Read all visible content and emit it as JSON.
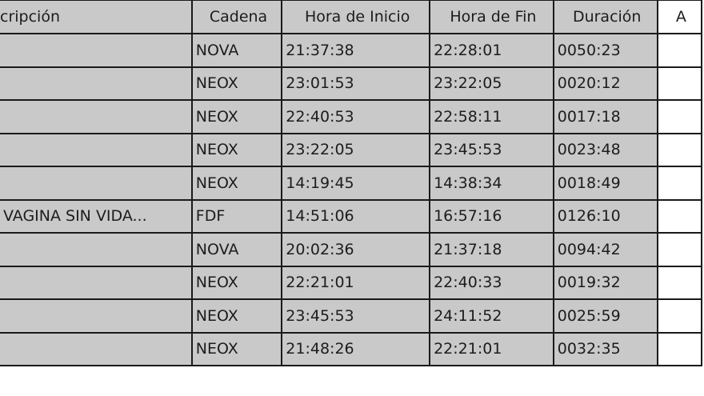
{
  "table": {
    "headers": [
      "cripción",
      "Cadena",
      "Hora de Inicio",
      "Hora de Fin",
      "Duración",
      "A"
    ],
    "rows": [
      {
        "descripcion": "",
        "cadena": "NOVA",
        "inicio": "21:37:38",
        "fin": "22:28:01",
        "duracion": "0050:23"
      },
      {
        "descripcion": "",
        "cadena": "NEOX",
        "inicio": "23:01:53",
        "fin": "23:22:05",
        "duracion": "0020:12"
      },
      {
        "descripcion": "",
        "cadena": "NEOX",
        "inicio": "22:40:53",
        "fin": "22:58:11",
        "duracion": "0017:18"
      },
      {
        "descripcion": "",
        "cadena": "NEOX",
        "inicio": "23:22:05",
        "fin": "23:45:53",
        "duracion": "0023:48"
      },
      {
        "descripcion": "",
        "cadena": "NEOX",
        "inicio": "14:19:45",
        "fin": "14:38:34",
        "duracion": "0018:49"
      },
      {
        "descripcion": "VAGINA SIN VIDA...",
        "cadena": "FDF",
        "inicio": "14:51:06",
        "fin": "16:57:16",
        "duracion": "0126:10"
      },
      {
        "descripcion": "",
        "cadena": "NOVA",
        "inicio": "20:02:36",
        "fin": "21:37:18",
        "duracion": "0094:42"
      },
      {
        "descripcion": "",
        "cadena": "NEOX",
        "inicio": "22:21:01",
        "fin": "22:40:33",
        "duracion": "0019:32"
      },
      {
        "descripcion": "",
        "cadena": "NEOX",
        "inicio": "23:45:53",
        "fin": "24:11:52",
        "duracion": "0025:59"
      },
      {
        "descripcion": "",
        "cadena": "NEOX",
        "inicio": "21:48:26",
        "fin": "22:21:01",
        "duracion": "0032:35"
      }
    ]
  },
  "colors": {
    "cell": "#c9c9c9",
    "border": "#1a1a1a",
    "last_column": "#ffffff"
  }
}
